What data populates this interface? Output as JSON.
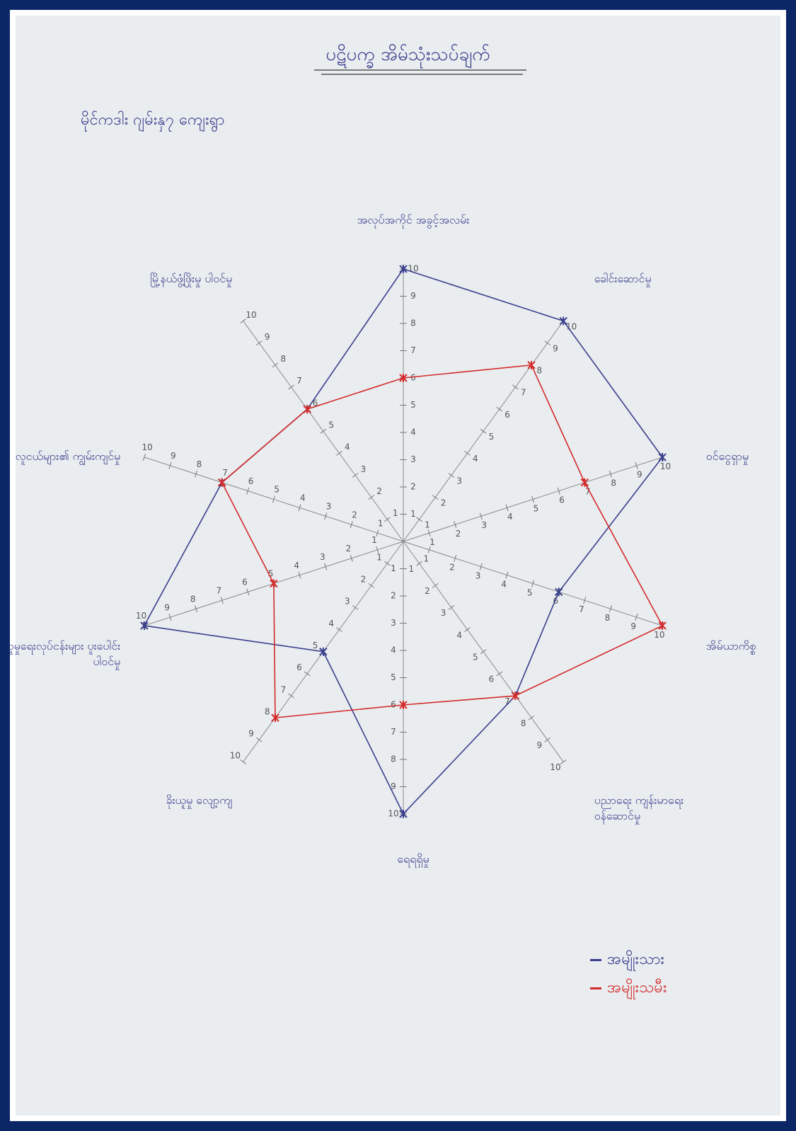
{
  "chart_data": {
    "type": "radar",
    "title": "ပဋိပက္ခ အိမ်သုံးသပ်ချက်",
    "subtitle": "မိုင်ကဒါး ဂျမ်းနှ၇ ကျေးရွာ",
    "categories": [
      "အလုပ်အကိုင် အခွင့်အလမ်း",
      "ခေါင်းဆောင်မှု",
      "ဝင်ငွေရှာမှု",
      "အိမ်ယာကိစ္စ",
      "ပညာရေး ကျန်းမာရေး ဝန်ဆောင်မှု",
      "ရေရရှိမှု",
      "ခိုးယူမှု လျော့ကျ",
      "လူမှုရေးလုပ်ငန်းများ ပူးပေါင်းပါဝင်မှု",
      "လူငယ်များ၏ ကျွမ်းကျင်မှု",
      "မြို့နယ်ဖွံ့ဖြိုးမှု ပါဝင်မှု"
    ],
    "series": [
      {
        "name": "အမျိုးသား",
        "color": "#3b3f8c",
        "values": [
          10,
          10,
          10,
          6,
          7,
          10,
          5,
          10,
          7,
          6
        ]
      },
      {
        "name": "အမျိုးသမီး",
        "color": "#d42a2a",
        "values": [
          6,
          8,
          7,
          10,
          7,
          6,
          8,
          5,
          7,
          6
        ]
      }
    ],
    "rlim": [
      0,
      10
    ],
    "rticks": [
      1,
      2,
      3,
      4,
      5,
      6,
      7,
      8,
      9,
      10
    ]
  }
}
